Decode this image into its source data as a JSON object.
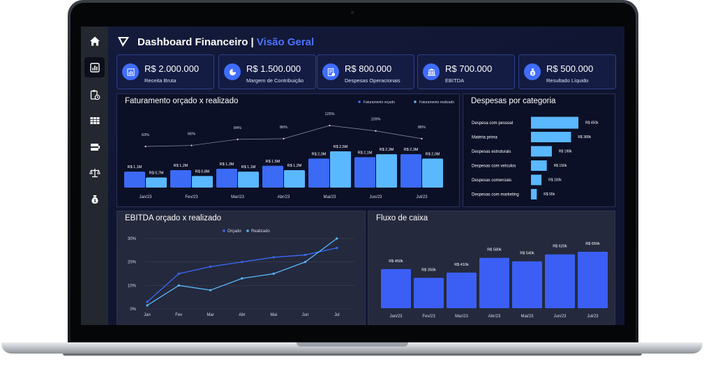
{
  "app": {
    "title": "Dashboard Financeiro",
    "separator": "|",
    "subtitle": "Visão Geral"
  },
  "colors": {
    "accent": "#4b72ff",
    "bar_primary": "#3b6af5",
    "bar_secondary": "#5ab8ff",
    "card_bg": "#141c44"
  },
  "sidebar": {
    "items": [
      {
        "icon": "home-icon"
      },
      {
        "icon": "bar-chart-icon",
        "active": true
      },
      {
        "icon": "clipboard-clock-icon"
      },
      {
        "icon": "table-icon"
      },
      {
        "icon": "server-icon"
      },
      {
        "icon": "scale-icon"
      },
      {
        "icon": "money-bag-icon"
      }
    ]
  },
  "kpis": [
    {
      "value": "R$ 2.000.000",
      "label": "Receita Bruta",
      "icon": "receipt-chart-icon"
    },
    {
      "value": "R$ 1.500.000",
      "label": "Margem de Contribuição",
      "icon": "pie-chart-icon"
    },
    {
      "value": "R$ 800.000",
      "label": "Despesas Operacionais",
      "icon": "invoice-icon"
    },
    {
      "value": "R$ 700.000",
      "label": "EBITDA",
      "icon": "bank-icon"
    },
    {
      "value": "R$ 500.000",
      "label": "Resultado Líquido",
      "icon": "money-bag-icon"
    }
  ],
  "panels": {
    "faturamento": "Faturamento orçado x realizado",
    "despesas": "Despesas por categoria",
    "ebitda": "EBITDA orçado x realizado",
    "fluxo": "Fluxo de caixa"
  },
  "chart_data": [
    {
      "type": "bar",
      "title": "Faturamento orçado x realizado",
      "categories": [
        "Jan/23",
        "Fev/23",
        "Mar/23",
        "Abr/23",
        "Mai/23",
        "Jun/23",
        "Jul/23"
      ],
      "series": [
        {
          "name": "Faturamento orçado",
          "values": [
            1.1,
            1.2,
            1.3,
            1.5,
            2.0,
            2.1,
            2.3
          ],
          "labels": [
            "R$ 1,1M",
            "R$ 1,2M",
            "R$ 1,3M",
            "R$ 1,5M",
            "R$ 2,0M",
            "R$ 2,1M",
            "R$ 2,3M"
          ]
        },
        {
          "name": "Faturamento realizado",
          "values": [
            0.7,
            0.8,
            1.1,
            1.2,
            2.5,
            2.3,
            2.0
          ],
          "labels": [
            "R$ 0,7M",
            "R$ 0,8M",
            "R$ 1,1M",
            "R$ 1,2M",
            "R$ 2,5M",
            "R$ 2,3M",
            "R$ 2,0M"
          ]
        }
      ],
      "line": {
        "values": [
          63,
          66,
          84,
          86,
          125,
          109,
          86
        ],
        "labels": [
          "63%",
          "66%",
          "84%",
          "86%",
          "125%",
          "109%",
          "86%"
        ]
      },
      "legend_position": "top-right"
    },
    {
      "type": "bar",
      "orientation": "horizontal",
      "title": "Despesas por categoria",
      "categories": [
        "Despesa com pessoal",
        "Matéria prima",
        "Despesas estruturais",
        "Despesas com veículos",
        "Despesas comerciais",
        "Despesas com marketing"
      ],
      "values": [
        450,
        380,
        198,
        150,
        100,
        55
      ],
      "labels": [
        "R$ 450k",
        "R$ 380k",
        "R$ 198k",
        "R$ 150k",
        "R$ 100k",
        "R$ 55k"
      ]
    },
    {
      "type": "line",
      "title": "EBITDA orçado x realizado",
      "x": [
        "Jan",
        "Fev",
        "Mar",
        "Abr",
        "Mai",
        "Jun",
        "Jul"
      ],
      "yticks": [
        "0%",
        "10%",
        "20%",
        "30%"
      ],
      "ylim": [
        0,
        30
      ],
      "series": [
        {
          "name": "Orçado",
          "values": [
            3,
            15,
            18,
            20,
            22,
            23,
            26
          ]
        },
        {
          "name": "Realizado",
          "values": [
            1.5,
            10,
            8,
            13,
            15,
            20,
            30
          ]
        }
      ],
      "legend_position": "top-center"
    },
    {
      "type": "bar",
      "title": "Fluxo de caixa",
      "categories": [
        "Jan/23",
        "Fev/23",
        "Mar/23",
        "Abr/23",
        "Mai/23",
        "Jun/23",
        "Jul/23"
      ],
      "values": [
        450,
        350,
        410,
        580,
        540,
        620,
        650
      ],
      "labels": [
        "R$ 450k",
        "R$ 350k",
        "R$ 410k",
        "R$ 580k",
        "R$ 540k",
        "R$ 620k",
        "R$ 650k"
      ]
    }
  ]
}
